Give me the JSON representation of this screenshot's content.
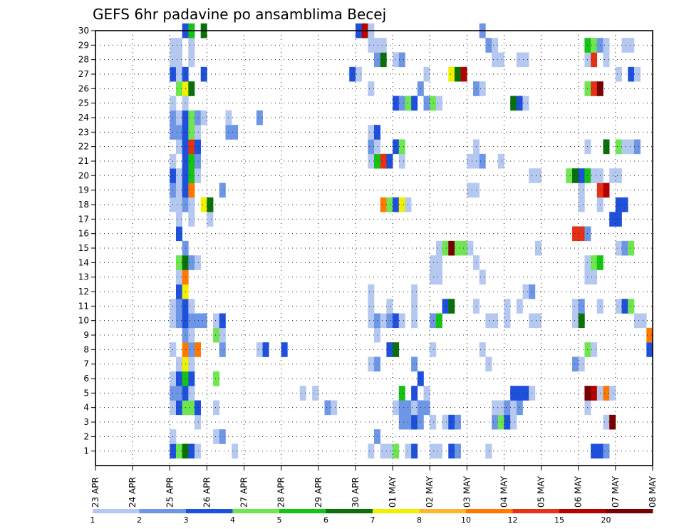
{
  "chart_data": {
    "type": "heatmap",
    "title": "GEFS 6hr padavine po ansamblima Becej",
    "xlabel": "",
    "ylabel": "",
    "x_ticks": [
      "23 APR",
      "24 APR",
      "25 APR",
      "26 APR",
      "27 APR",
      "28 APR",
      "29 APR",
      "30 APR",
      "01 MAY",
      "02 MAY",
      "03 MAY",
      "04 MAY",
      "05 MAY",
      "06 MAY",
      "07 MAY",
      "08 MAY"
    ],
    "y_ticks": [
      1,
      2,
      3,
      4,
      5,
      6,
      7,
      8,
      9,
      10,
      11,
      12,
      13,
      14,
      15,
      16,
      17,
      18,
      19,
      20,
      21,
      22,
      23,
      24,
      25,
      26,
      27,
      28,
      29,
      30
    ],
    "ylim": [
      0,
      30
    ],
    "grid": true,
    "legend": "bottom",
    "colorbar": {
      "levels": [
        1,
        2,
        3,
        4,
        5,
        6,
        7,
        8,
        10,
        12,
        15,
        20
      ],
      "colors": [
        "#b4c8f0",
        "#6e96e6",
        "#1e50dc",
        "#6ee650",
        "#14c314",
        "#0a700a",
        "#f0f000",
        "#ffb432",
        "#ff7800",
        "#e63214",
        "#b40000",
        "#780000"
      ]
    },
    "cells": {
      "1": [
        [
          12,
          2
        ],
        [
          13,
          3
        ],
        [
          14,
          5
        ],
        [
          15,
          2
        ],
        [
          16,
          0
        ],
        [
          22,
          0
        ],
        [
          44,
          0
        ],
        [
          46,
          0
        ],
        [
          47,
          0
        ],
        [
          48,
          3
        ],
        [
          50,
          0
        ],
        [
          51,
          2
        ],
        [
          54,
          0
        ],
        [
          55,
          0
        ],
        [
          57,
          2
        ],
        [
          58,
          1
        ],
        [
          63,
          0
        ],
        [
          80,
          2
        ],
        [
          81,
          2
        ],
        [
          82,
          1
        ]
      ],
      "2": [
        [
          12,
          0
        ],
        [
          19,
          0
        ],
        [
          20,
          1
        ],
        [
          45,
          1
        ]
      ],
      "3": [
        [
          16,
          0
        ],
        [
          49,
          1
        ],
        [
          50,
          1
        ],
        [
          51,
          2
        ],
        [
          52,
          1
        ],
        [
          54,
          0
        ],
        [
          56,
          0
        ],
        [
          57,
          2
        ],
        [
          58,
          1
        ],
        [
          64,
          1
        ],
        [
          65,
          3
        ],
        [
          66,
          2
        ],
        [
          67,
          0
        ],
        [
          82,
          0
        ],
        [
          83,
          11
        ]
      ],
      "4": [
        [
          12,
          0
        ],
        [
          13,
          2
        ],
        [
          14,
          3
        ],
        [
          15,
          3
        ],
        [
          16,
          2
        ],
        [
          19,
          0
        ],
        [
          37,
          1
        ],
        [
          38,
          0
        ],
        [
          48,
          0
        ],
        [
          49,
          1
        ],
        [
          50,
          1
        ],
        [
          51,
          0
        ],
        [
          52,
          1
        ],
        [
          53,
          1
        ],
        [
          64,
          0
        ],
        [
          65,
          0
        ],
        [
          66,
          1
        ],
        [
          67,
          0
        ],
        [
          68,
          1
        ],
        [
          79,
          0
        ]
      ],
      "5": [
        [
          12,
          1
        ],
        [
          13,
          1
        ],
        [
          14,
          2
        ],
        [
          15,
          0
        ],
        [
          33,
          0
        ],
        [
          35,
          0
        ],
        [
          49,
          4
        ],
        [
          51,
          2
        ],
        [
          53,
          0
        ],
        [
          67,
          2
        ],
        [
          68,
          2
        ],
        [
          69,
          2
        ],
        [
          70,
          0
        ],
        [
          79,
          11
        ],
        [
          80,
          10
        ],
        [
          81,
          0
        ],
        [
          82,
          8
        ],
        [
          83,
          0
        ]
      ],
      "6": [
        [
          12,
          0
        ],
        [
          13,
          2
        ],
        [
          14,
          4
        ],
        [
          15,
          2
        ],
        [
          19,
          3
        ],
        [
          52,
          2
        ]
      ],
      "7": [
        [
          13,
          0
        ],
        [
          14,
          6
        ],
        [
          15,
          0
        ],
        [
          44,
          0
        ],
        [
          45,
          1
        ],
        [
          51,
          1
        ],
        [
          63,
          0
        ],
        [
          77,
          1
        ],
        [
          78,
          0
        ]
      ],
      "8": [
        [
          12,
          0
        ],
        [
          14,
          8
        ],
        [
          15,
          1
        ],
        [
          16,
          8
        ],
        [
          20,
          1
        ],
        [
          26,
          0
        ],
        [
          27,
          2
        ],
        [
          30,
          2
        ],
        [
          47,
          2
        ],
        [
          48,
          5
        ],
        [
          54,
          0
        ],
        [
          62,
          0
        ],
        [
          79,
          3
        ],
        [
          80,
          0
        ],
        [
          89,
          2
        ]
      ],
      "9": [
        [
          14,
          1
        ],
        [
          15,
          0
        ],
        [
          19,
          3
        ],
        [
          20,
          0
        ],
        [
          45,
          0
        ],
        [
          89,
          8
        ]
      ],
      "10": [
        [
          12,
          0
        ],
        [
          13,
          1
        ],
        [
          14,
          2
        ],
        [
          15,
          1
        ],
        [
          16,
          1
        ],
        [
          17,
          1
        ],
        [
          19,
          0
        ],
        [
          20,
          2
        ],
        [
          44,
          0
        ],
        [
          45,
          1
        ],
        [
          46,
          0
        ],
        [
          47,
          1
        ],
        [
          48,
          2
        ],
        [
          49,
          0
        ],
        [
          51,
          0
        ],
        [
          54,
          1
        ],
        [
          55,
          4
        ],
        [
          63,
          0
        ],
        [
          64,
          0
        ],
        [
          66,
          0
        ],
        [
          70,
          0
        ],
        [
          71,
          0
        ],
        [
          77,
          0
        ],
        [
          78,
          5
        ],
        [
          87,
          0
        ],
        [
          88,
          0
        ]
      ],
      "11": [
        [
          12,
          0
        ],
        [
          13,
          1
        ],
        [
          14,
          2
        ],
        [
          15,
          0
        ],
        [
          44,
          0
        ],
        [
          47,
          0
        ],
        [
          51,
          0
        ],
        [
          56,
          2
        ],
        [
          57,
          5
        ],
        [
          61,
          0
        ],
        [
          66,
          0
        ],
        [
          68,
          0
        ],
        [
          77,
          0
        ],
        [
          78,
          1
        ],
        [
          81,
          0
        ],
        [
          84,
          0
        ],
        [
          85,
          2
        ],
        [
          86,
          3
        ]
      ],
      "12": [
        [
          13,
          2
        ],
        [
          14,
          6
        ],
        [
          44,
          0
        ],
        [
          51,
          0
        ],
        [
          69,
          0
        ],
        [
          70,
          1
        ]
      ],
      "13": [
        [
          13,
          0
        ],
        [
          14,
          8
        ],
        [
          54,
          0
        ],
        [
          55,
          0
        ],
        [
          62,
          0
        ],
        [
          79,
          0
        ],
        [
          80,
          0
        ]
      ],
      "14": [
        [
          13,
          3
        ],
        [
          14,
          5
        ],
        [
          15,
          1
        ],
        [
          16,
          0
        ],
        [
          54,
          0
        ],
        [
          55,
          0
        ],
        [
          61,
          0
        ],
        [
          79,
          0
        ],
        [
          80,
          3
        ],
        [
          81,
          4
        ]
      ],
      "15": [
        [
          14,
          1
        ],
        [
          55,
          0
        ],
        [
          56,
          3
        ],
        [
          57,
          11
        ],
        [
          58,
          3
        ],
        [
          59,
          3
        ],
        [
          60,
          0
        ],
        [
          71,
          0
        ],
        [
          84,
          0
        ],
        [
          85,
          1
        ],
        [
          86,
          3
        ]
      ],
      "16": [
        [
          13,
          2
        ],
        [
          77,
          9
        ],
        [
          78,
          9
        ],
        [
          79,
          1
        ]
      ],
      "17": [
        [
          13,
          0
        ],
        [
          15,
          0
        ],
        [
          18,
          0
        ],
        [
          83,
          2
        ],
        [
          84,
          2
        ]
      ],
      "18": [
        [
          12,
          0
        ],
        [
          13,
          0
        ],
        [
          14,
          1
        ],
        [
          15,
          0
        ],
        [
          17,
          6
        ],
        [
          18,
          5
        ],
        [
          46,
          8
        ],
        [
          47,
          3
        ],
        [
          48,
          2
        ],
        [
          49,
          6
        ],
        [
          50,
          0
        ],
        [
          78,
          0
        ],
        [
          81,
          0
        ],
        [
          84,
          2
        ],
        [
          85,
          2
        ]
      ],
      "19": [
        [
          12,
          1
        ],
        [
          13,
          0
        ],
        [
          14,
          2
        ],
        [
          15,
          8
        ],
        [
          20,
          1
        ],
        [
          60,
          0
        ],
        [
          61,
          0
        ],
        [
          78,
          0
        ],
        [
          81,
          9
        ],
        [
          82,
          10
        ]
      ],
      "20": [
        [
          12,
          2
        ],
        [
          13,
          0
        ],
        [
          14,
          2
        ],
        [
          15,
          4
        ],
        [
          16,
          0
        ],
        [
          70,
          0
        ],
        [
          71,
          0
        ],
        [
          76,
          3
        ],
        [
          77,
          5
        ],
        [
          78,
          2
        ],
        [
          79,
          4
        ],
        [
          80,
          0
        ],
        [
          81,
          0
        ],
        [
          83,
          0
        ],
        [
          84,
          0
        ]
      ],
      "21": [
        [
          12,
          0
        ],
        [
          14,
          2
        ],
        [
          15,
          4
        ],
        [
          16,
          1
        ],
        [
          44,
          0
        ],
        [
          45,
          4
        ],
        [
          46,
          9
        ],
        [
          47,
          2
        ],
        [
          49,
          0
        ],
        [
          60,
          0
        ],
        [
          61,
          0
        ],
        [
          62,
          1
        ],
        [
          65,
          0
        ]
      ],
      "22": [
        [
          13,
          0
        ],
        [
          14,
          2
        ],
        [
          15,
          9
        ],
        [
          16,
          2
        ],
        [
          44,
          1
        ],
        [
          45,
          0
        ],
        [
          48,
          2
        ],
        [
          49,
          3
        ],
        [
          61,
          0
        ],
        [
          79,
          0
        ],
        [
          82,
          5
        ],
        [
          84,
          3
        ],
        [
          85,
          0
        ],
        [
          86,
          0
        ],
        [
          87,
          1
        ]
      ],
      "23": [
        [
          12,
          1
        ],
        [
          13,
          1
        ],
        [
          14,
          2
        ],
        [
          15,
          3
        ],
        [
          16,
          0
        ],
        [
          21,
          1
        ],
        [
          22,
          1
        ],
        [
          44,
          0
        ],
        [
          45,
          2
        ]
      ],
      "24": [
        [
          12,
          1
        ],
        [
          13,
          0
        ],
        [
          14,
          2
        ],
        [
          15,
          3
        ],
        [
          16,
          1
        ],
        [
          17,
          0
        ],
        [
          21,
          0
        ],
        [
          26,
          1
        ]
      ],
      "25": [
        [
          12,
          0
        ],
        [
          14,
          0
        ],
        [
          48,
          2
        ],
        [
          49,
          1
        ],
        [
          50,
          3
        ],
        [
          51,
          2
        ],
        [
          53,
          1
        ],
        [
          54,
          3
        ],
        [
          55,
          0
        ],
        [
          67,
          5
        ],
        [
          68,
          2
        ],
        [
          69,
          0
        ]
      ],
      "26": [
        [
          13,
          3
        ],
        [
          14,
          6
        ],
        [
          15,
          5
        ],
        [
          44,
          0
        ],
        [
          52,
          1
        ],
        [
          61,
          1
        ],
        [
          62,
          0
        ],
        [
          79,
          3
        ],
        [
          80,
          9
        ],
        [
          81,
          11
        ]
      ],
      "27": [
        [
          12,
          2
        ],
        [
          13,
          0
        ],
        [
          14,
          2
        ],
        [
          17,
          2
        ],
        [
          41,
          2
        ],
        [
          42,
          0
        ],
        [
          53,
          0
        ],
        [
          57,
          6
        ],
        [
          58,
          5
        ],
        [
          59,
          10
        ],
        [
          84,
          0
        ],
        [
          86,
          2
        ],
        [
          87,
          0
        ]
      ],
      "28": [
        [
          12,
          0
        ],
        [
          13,
          0
        ],
        [
          15,
          0
        ],
        [
          45,
          1
        ],
        [
          46,
          5
        ],
        [
          48,
          0
        ],
        [
          49,
          1
        ],
        [
          64,
          0
        ],
        [
          65,
          0
        ],
        [
          68,
          0
        ],
        [
          69,
          0
        ],
        [
          79,
          0
        ],
        [
          80,
          9
        ],
        [
          82,
          0
        ]
      ],
      "29": [
        [
          12,
          0
        ],
        [
          13,
          0
        ],
        [
          15,
          0
        ],
        [
          44,
          0
        ],
        [
          45,
          0
        ],
        [
          46,
          0
        ],
        [
          63,
          1
        ],
        [
          64,
          0
        ],
        [
          79,
          4
        ],
        [
          80,
          3
        ],
        [
          81,
          1
        ],
        [
          82,
          0
        ],
        [
          85,
          0
        ],
        [
          86,
          0
        ]
      ],
      "30": [
        [
          14,
          2
        ],
        [
          15,
          4
        ],
        [
          17,
          5
        ],
        [
          42,
          2
        ],
        [
          43,
          10
        ],
        [
          44,
          0
        ],
        [
          62,
          1
        ]
      ]
    }
  }
}
